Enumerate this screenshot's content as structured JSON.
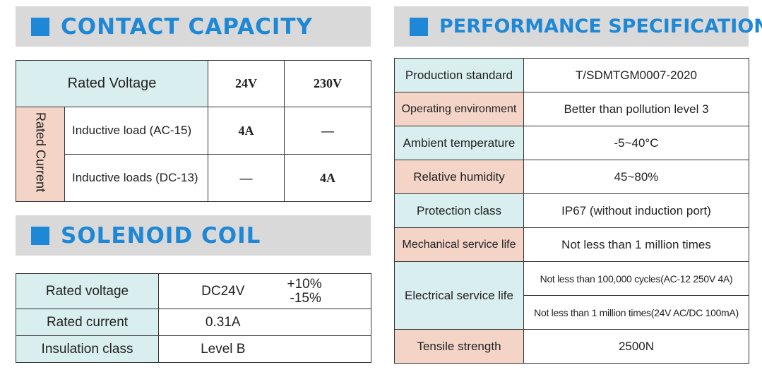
{
  "contact_capacity": {
    "title": "CONTACT CAPACITY",
    "rated_voltage_label": "Rated Voltage",
    "voltages": [
      "24V",
      "230V"
    ],
    "rated_current_label": "Rated Current",
    "rows": [
      {
        "load": "Inductive load (AC-15)",
        "v24": "4A",
        "v230": "—"
      },
      {
        "load": "Inductive loads (DC-13)",
        "v24": "—",
        "v230": "4A"
      }
    ]
  },
  "solenoid_coil": {
    "title": "SOLENOID COIL",
    "rows": [
      {
        "label": "Rated voltage",
        "value": "DC24V",
        "tol_plus": "+10%",
        "tol_minus": "-15%"
      },
      {
        "label": "Rated current",
        "value": "0.31A"
      },
      {
        "label": "Insulation class",
        "value": "Level B"
      }
    ]
  },
  "performance": {
    "title": "PERFORMANCE SPECIFICATIONS",
    "rows": [
      {
        "label": "Production standard",
        "value": "T/SDMTGM0007-2020"
      },
      {
        "label": "Operating environment",
        "value": "Better than pollution level 3"
      },
      {
        "label": "Ambient temperature",
        "value": "-5~40°C"
      },
      {
        "label": "Relative humidity",
        "value": "45~80%"
      },
      {
        "label": "Protection class",
        "value": "IP67 (without induction port)"
      },
      {
        "label": "Mechanical service life",
        "value": "Not less than 1 million times"
      },
      {
        "label": "Electrical service life",
        "values": [
          "Not less than 100,000 cycles(AC-12 250V 4A)",
          "Not less than 1 million times(24V AC/DC 100mA)"
        ]
      },
      {
        "label": "Tensile strength",
        "value": "2500N"
      }
    ]
  },
  "colors": {
    "accent": "#1e88d6",
    "banner": "#d9d9d9",
    "blue_cell": "#d9eeee",
    "pink_cell": "#f3d4c6"
  }
}
